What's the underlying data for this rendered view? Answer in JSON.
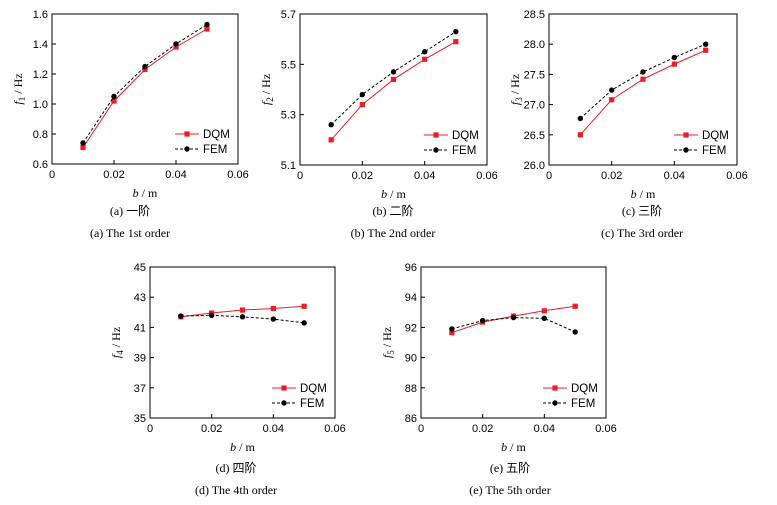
{
  "x_label_var": "b",
  "x_label_unit": " / m",
  "y_unit": " / Hz",
  "colors": {
    "dqm": "#ee1c25",
    "fem": "#000000"
  },
  "chart_data": [
    {
      "type": "line",
      "y_var": "f",
      "y_sub": "1",
      "x": [
        0.01,
        0.02,
        0.03,
        0.04,
        0.05
      ],
      "xlim": [
        0,
        0.06
      ],
      "xticks": [
        "0",
        "0.02",
        "0.04",
        "0.06"
      ],
      "ylim": [
        0.6,
        1.6
      ],
      "yticks": [
        "0.6",
        "0.8",
        "1.0",
        "1.2",
        "1.4",
        "1.6"
      ],
      "series": [
        {
          "name": "DQM",
          "style": "solid-square",
          "values": [
            0.71,
            1.02,
            1.23,
            1.38,
            1.5
          ]
        },
        {
          "name": "FEM",
          "style": "dashed-circle",
          "values": [
            0.74,
            1.05,
            1.25,
            1.4,
            1.53
          ]
        }
      ],
      "caption_cn": "(a) 一阶",
      "caption_en": "(a) The 1st order"
    },
    {
      "type": "line",
      "y_var": "f",
      "y_sub": "2",
      "x": [
        0.01,
        0.02,
        0.03,
        0.04,
        0.05
      ],
      "xlim": [
        0,
        0.06
      ],
      "xticks": [
        "0",
        "0.02",
        "0.04",
        "0.06"
      ],
      "ylim": [
        5.1,
        5.7
      ],
      "yticks": [
        "5.1",
        "5.3",
        "5.5",
        "5.7"
      ],
      "series": [
        {
          "name": "DQM",
          "style": "solid-square",
          "values": [
            5.2,
            5.34,
            5.44,
            5.52,
            5.59
          ]
        },
        {
          "name": "FEM",
          "style": "dashed-circle",
          "values": [
            5.26,
            5.38,
            5.47,
            5.55,
            5.63
          ]
        }
      ],
      "caption_cn": "(b) 二阶",
      "caption_en": "(b) The 2nd order"
    },
    {
      "type": "line",
      "y_var": "f",
      "y_sub": "3",
      "x": [
        0.01,
        0.02,
        0.03,
        0.04,
        0.05
      ],
      "xlim": [
        0,
        0.06
      ],
      "xticks": [
        "0",
        "0.02",
        "0.04",
        "0.06"
      ],
      "ylim": [
        26.0,
        28.5
      ],
      "yticks": [
        "26.0",
        "26.5",
        "27.0",
        "27.5",
        "28.0",
        "28.5"
      ],
      "series": [
        {
          "name": "DQM",
          "style": "solid-square",
          "values": [
            26.5,
            27.08,
            27.42,
            27.67,
            27.9
          ]
        },
        {
          "name": "FEM",
          "style": "dashed-circle",
          "values": [
            26.77,
            27.24,
            27.54,
            27.78,
            28.0
          ]
        }
      ],
      "caption_cn": "(c) 三阶",
      "caption_en": "(c) The 3rd order"
    },
    {
      "type": "line",
      "y_var": "f",
      "y_sub": "4",
      "x": [
        0.01,
        0.02,
        0.03,
        0.04,
        0.05
      ],
      "xlim": [
        0,
        0.06
      ],
      "xticks": [
        "0",
        "0.02",
        "0.04",
        "0.06"
      ],
      "ylim": [
        35,
        45
      ],
      "yticks": [
        "35",
        "37",
        "39",
        "41",
        "43",
        "45"
      ],
      "series": [
        {
          "name": "DQM",
          "style": "solid-square",
          "values": [
            41.7,
            41.95,
            42.15,
            42.25,
            42.4
          ]
        },
        {
          "name": "FEM",
          "style": "dashed-circle",
          "values": [
            41.75,
            41.8,
            41.7,
            41.55,
            41.3
          ]
        }
      ],
      "caption_cn": "(d) 四阶",
      "caption_en": "(d) The 4th order"
    },
    {
      "type": "line",
      "y_var": "f",
      "y_sub": "5",
      "x": [
        0.01,
        0.02,
        0.03,
        0.04,
        0.05
      ],
      "xlim": [
        0,
        0.06
      ],
      "xticks": [
        "0",
        "0.02",
        "0.04",
        "0.06"
      ],
      "ylim": [
        86,
        96
      ],
      "yticks": [
        "86",
        "88",
        "90",
        "92",
        "94",
        "96"
      ],
      "series": [
        {
          "name": "DQM",
          "style": "solid-square",
          "values": [
            91.65,
            92.35,
            92.75,
            93.1,
            93.4
          ]
        },
        {
          "name": "FEM",
          "style": "dashed-circle",
          "values": [
            91.9,
            92.45,
            92.65,
            92.6,
            91.7
          ]
        }
      ],
      "caption_cn": "(e) 五阶",
      "caption_en": "(e) The 5th order"
    }
  ]
}
